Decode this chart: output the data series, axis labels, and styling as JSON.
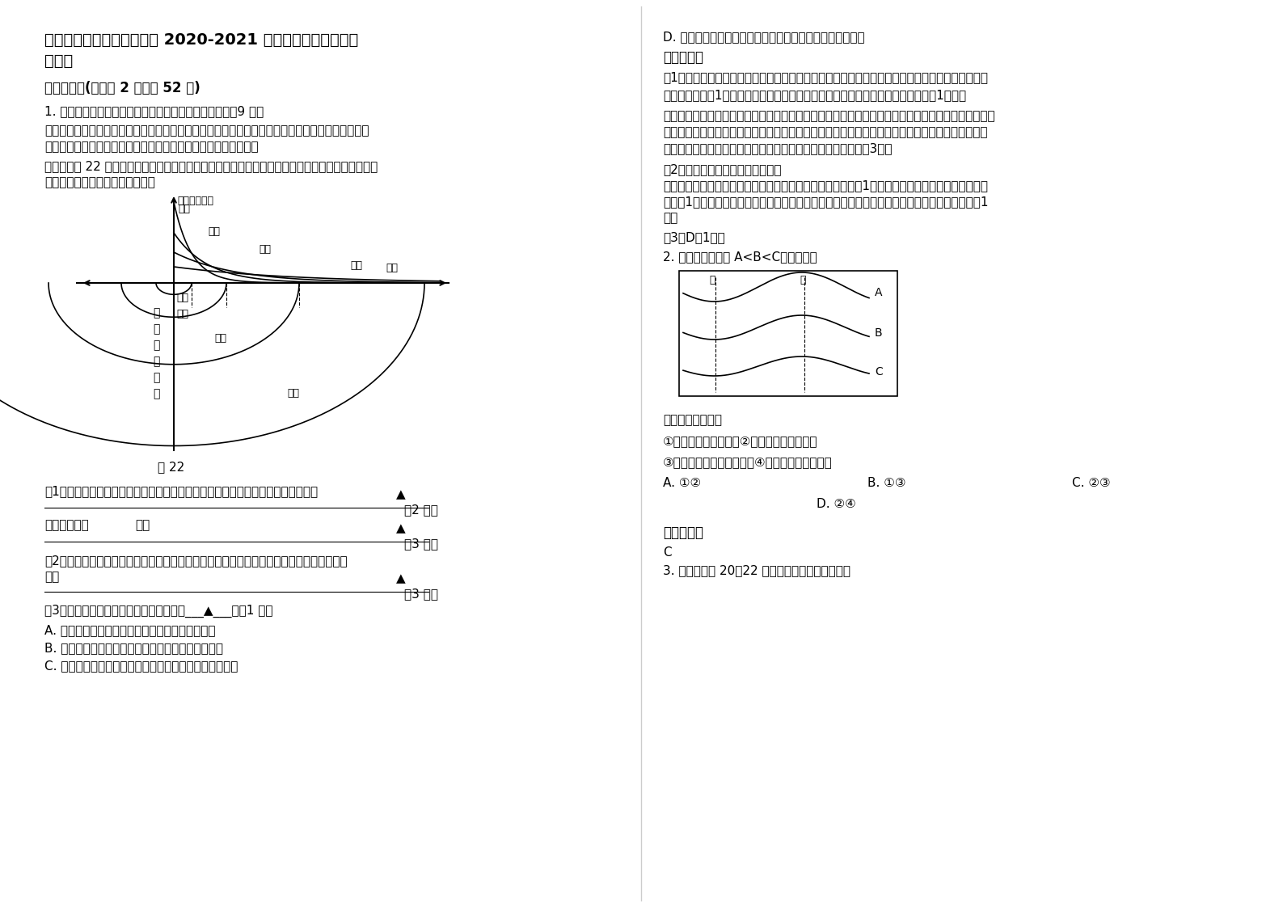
{
  "bg_color": "#ffffff",
  "title_line1": "陕西省西安市第四十七中学 2020-2021 学年高三地理联考试题",
  "title_line2": "含解析",
  "section1_header": "一、选择题(每小题 2 分，共 52 分)",
  "q1_intro": "1. 阅读关于城市空间分异的相关图文资料，回答问题。（9 分）",
  "q1_mat1": "材料一：由于城市土地资源有限，城市中的各种经济活动必须通过土地成本与经济效益的比较，在竞",
  "q1_mat1b": "争中选择适合自己的空间位置，从而形成了土地利用的空间结构。",
  "q1_mat2": "材料二：图 22 为商业、居住、工业和农业土地利用效益曲线及其在城市空间中对应的商业、居住、",
  "q1_mat2b": "工业和农业用地的空间分异状况。",
  "fig22_label": "图 22",
  "q1_sub1": "（1）说明城市商业、居住、工业和农业土地利用效益从城市中心向外的变化规律。",
  "q1_blank1": "（2 分）",
  "q1_sub1b": "解释变化的原",
  "q1_sub1c": "因：",
  "q1_blank2": "（3 分）",
  "q1_sub2": "（2）从地租支付能力的角度分析四类经济活动如何在城市空间中形成土地利用的同心圆结构",
  "q1_sub2b": "的。",
  "q1_blank3": "（3 分）",
  "q1_sub3": "（3）随着城市规模扩大和地价上涨将导致___▲___。（1 分）",
  "q1_optA": "A. 商业和工业的用地面积缩小，居住用地面积扩大",
  "q1_optB": "B. 商业和居住的用地面积缩小，工业的用地面积扩大",
  "q1_optC": "C. 商业、居住和工业的用地面积均扩大，商业扩大得最多",
  "right_col_optD": "D. 商业、居住的用地面积扩大，部分工业用地转变为居住地",
  "ref_ans_header": "参考答案：",
  "ref1": "（1）土地利用效益的变化规律：商业、居住、工业和农业的土地利用效益都呈现出从城市中心向郊",
  "ref1b": "区递减的特征（1分）。但递减速度不同，商业最快，居住、工业和农业依次减慢（1分）。",
  "ref2": "形成原因：商业在城市中心可以创造高额利润，土地利用效益最高；随着远离市中心效益急剧下降，而",
  "ref2b": "此时居住用地效益超过了商业用地的效益；在城市外围，居住用地的效益被工业用地超过；由于城市",
  "ref2c": "集聚效应的减弱，最后农业用地的效益超越了工业用地的效益（3分）",
  "ref3": "（2）从地租支付能力的角度分析：",
  "ref3b": "土地利用效益越高的经济活动，其支付地价的能力也越强；（1分）总体上，地价由市中心向外围递",
  "ref3c": "减；（1分）由于商业、居住、工业和农业的用地效益依次降低，其支付地价的能力也依次减弱（1",
  "ref3d": "分）",
  "ref4": "（3）D（1分）",
  "q2_intro": "2. 下面等值线图中 A<B<C，据此回答",
  "q2_text1": "假如是等高线，则",
  "q2_text2": "①甲处可能有河流发育②乙处可能有河流发育",
  "q2_text3": "③甲为山脊线，乙为山谷线④甲为山谷，乙为山脊",
  "q2_optA": "A. ①②",
  "q2_optB": "B. ①③",
  "q2_optC": "C. ②③",
  "q2_optD": "D. ②④",
  "q2_ref_header": "参考答案：",
  "q2_ref_ans": "C",
  "q3_intro": "3. 读图，判断 20～22 题。（阴影部分表示黑夜）"
}
